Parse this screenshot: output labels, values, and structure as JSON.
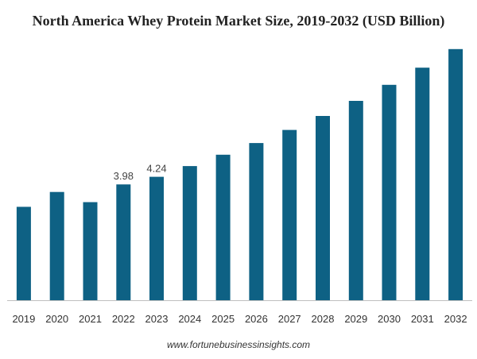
{
  "title": "North America Whey Protein Market Size, 2019-2032 (USD Billion)",
  "source": "www.fortunebusinessinsights.com",
  "colors": {
    "bar": "#0e6184",
    "axis": "#bfbfbf"
  },
  "chart_data": {
    "type": "bar",
    "title": "North America Whey Protein Market Size, 2019-2032 (USD Billion)",
    "xlabel": "",
    "ylabel": "",
    "grid": false,
    "categories": [
      "2019",
      "2020",
      "2021",
      "2022",
      "2023",
      "2024",
      "2025",
      "2026",
      "2027",
      "2028",
      "2029",
      "2030",
      "2031",
      "2032"
    ],
    "values": [
      3.21,
      3.72,
      3.37,
      3.98,
      4.24,
      4.61,
      5.0,
      5.4,
      5.85,
      6.33,
      6.85,
      7.4,
      7.99,
      8.63
    ],
    "data_labels": {
      "3": "3.98",
      "4": "4.24"
    },
    "ylim": [
      0,
      8.76
    ]
  }
}
